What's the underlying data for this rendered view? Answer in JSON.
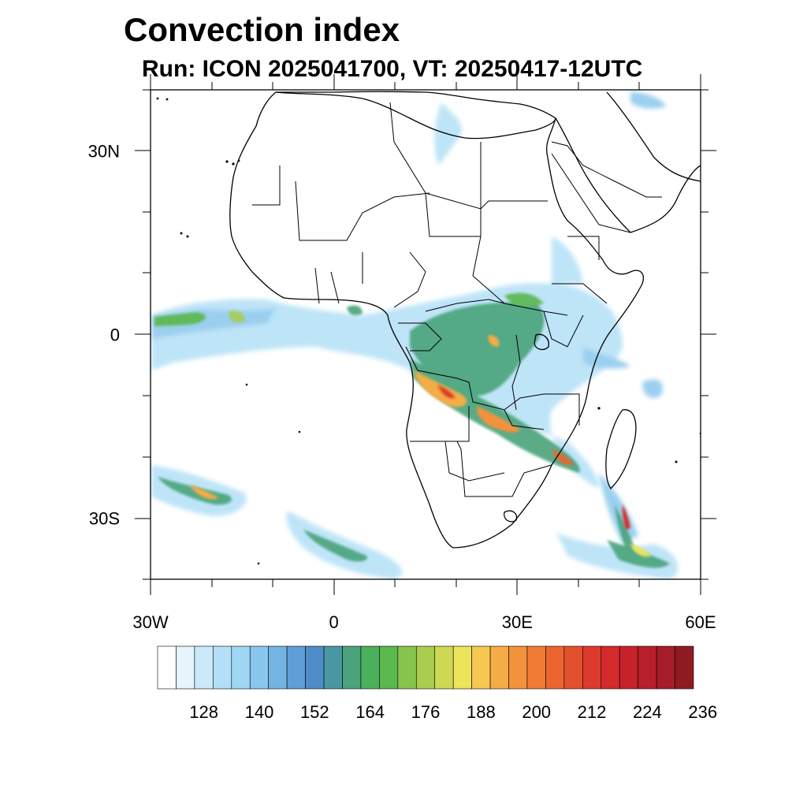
{
  "title": "Convection index",
  "subtitle": "Run: ICON 2025041700,  VT: 20250417-12UTC",
  "map": {
    "lat_labels": [
      {
        "text": "30N",
        "lat": 30
      },
      {
        "text": "0",
        "lat": 0
      },
      {
        "text": "30S",
        "lat": -30
      }
    ],
    "lon_labels": [
      {
        "text": "30W",
        "lon": -30
      },
      {
        "text": "0",
        "lon": 0
      },
      {
        "text": "30E",
        "lon": 30
      },
      {
        "text": "60E",
        "lon": 60
      }
    ],
    "extent": {
      "lon_min": -30,
      "lon_max": 60,
      "lat_min": -40,
      "lat_max": 40
    }
  },
  "colorbar": {
    "labels": [
      "128",
      "140",
      "152",
      "164",
      "176",
      "188",
      "200",
      "212",
      "224",
      "236"
    ],
    "colors": [
      "#ffffff",
      "#e6f4fc",
      "#cbe9f8",
      "#b3e0f7",
      "#9fd6f3",
      "#8ac7ec",
      "#74b4e2",
      "#5f9ed6",
      "#4e8dc7",
      "#4a97a2",
      "#4aa37a",
      "#4bb05b",
      "#5ab84c",
      "#86c44d",
      "#a9cd4f",
      "#cfd852",
      "#ece459",
      "#f6c851",
      "#f4ac47",
      "#f3923d",
      "#f07b35",
      "#ec6531",
      "#e3502e",
      "#dc3a2c",
      "#d42a2c",
      "#c7222c",
      "#b81f2a",
      "#a61c28",
      "#8f1b21"
    ]
  },
  "colors": {
    "low": "#8ac7ec",
    "mid": "#4aa37a",
    "high": "#f3923d",
    "peak": "#d42a2c"
  }
}
